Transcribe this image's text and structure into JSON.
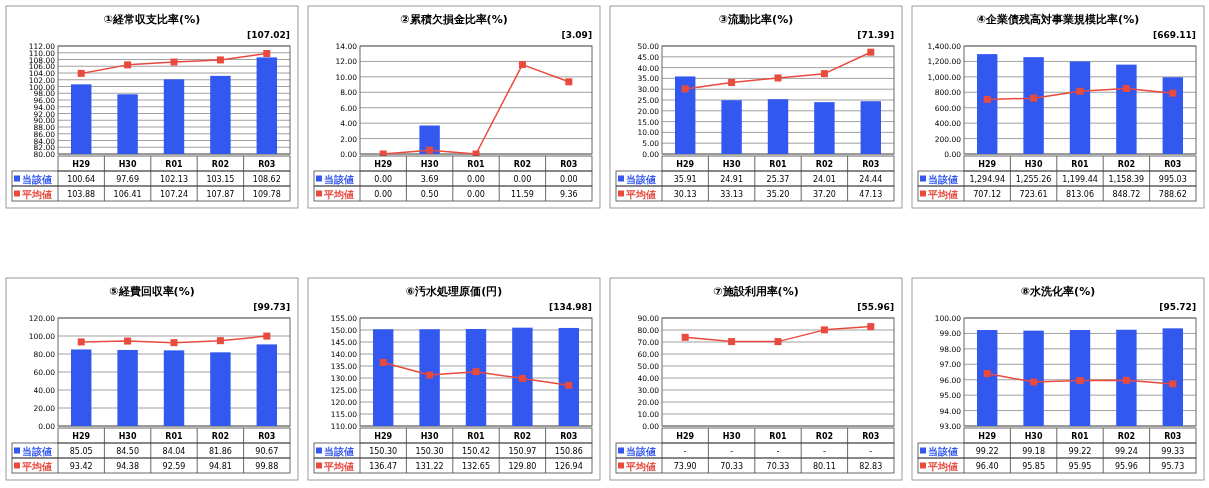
{
  "chart_data": [
    {
      "type": "bar",
      "title": "①経常収支比率(%)",
      "annotations": [
        "[107.02]"
      ],
      "legend": "bottom left",
      "categories": [
        "H29",
        "H30",
        "R01",
        "R02",
        "R03"
      ],
      "grid": "y",
      "marker": "square",
      "series": [
        {
          "name": "当該値",
          "color": "#3358f0",
          "values": [
            100.64,
            97.69,
            102.13,
            103.15,
            108.62
          ],
          "value_labels": [
            "100.64",
            "97.69",
            "102.13",
            "103.15",
            "108.62"
          ]
        },
        {
          "name": "平均値",
          "type": "line",
          "color": "#e84a3e",
          "values": [
            103.88,
            106.41,
            107.24,
            107.87,
            109.78
          ],
          "value_labels": [
            "103.88",
            "106.41",
            "107.24",
            "107.87",
            "109.78"
          ]
        }
      ],
      "ylim": [
        80,
        112
      ],
      "yticks": [
        {
          "value": 80,
          "label": "80.00"
        },
        {
          "value": 82,
          "label": "82.00"
        },
        {
          "value": 84,
          "label": "84.00"
        },
        {
          "value": 86,
          "label": "86.00"
        },
        {
          "value": 88,
          "label": "88.00"
        },
        {
          "value": 90,
          "label": "90.00"
        },
        {
          "value": 92,
          "label": "92.00"
        },
        {
          "value": 94,
          "label": "94.00"
        },
        {
          "value": 96,
          "label": "96.00"
        },
        {
          "value": 98,
          "label": "98.00"
        },
        {
          "value": 100,
          "label": "100.00"
        },
        {
          "value": 102,
          "label": "102.00"
        },
        {
          "value": 104,
          "label": "104.00"
        },
        {
          "value": 106,
          "label": "106.00"
        },
        {
          "value": 108,
          "label": "108.00"
        },
        {
          "value": 110,
          "label": "110.00"
        },
        {
          "value": 112,
          "label": "112.00"
        }
      ]
    },
    {
      "type": "bar",
      "title": "②累積欠損金比率(%)",
      "annotations": [
        "[3.09]"
      ],
      "legend": "bottom left",
      "categories": [
        "H29",
        "H30",
        "R01",
        "R02",
        "R03"
      ],
      "grid": "y",
      "marker": "square",
      "series": [
        {
          "name": "当該値",
          "color": "#3358f0",
          "values": [
            0,
            3.69,
            0,
            0,
            0
          ],
          "value_labels": [
            "0.00",
            "3.69",
            "0.00",
            "0.00",
            "0.00"
          ]
        },
        {
          "name": "平均値",
          "type": "line",
          "color": "#e84a3e",
          "values": [
            0,
            0.5,
            0,
            11.59,
            9.36
          ],
          "value_labels": [
            "0.00",
            "0.50",
            "0.00",
            "11.59",
            "9.36"
          ]
        }
      ],
      "ylim": [
        0,
        14
      ],
      "yticks": [
        {
          "value": 0,
          "label": "0.00"
        },
        {
          "value": 2,
          "label": "2.00"
        },
        {
          "value": 4,
          "label": "4.00"
        },
        {
          "value": 6,
          "label": "6.00"
        },
        {
          "value": 8,
          "label": "8.00"
        },
        {
          "value": 10,
          "label": "10.00"
        },
        {
          "value": 12,
          "label": "12.00"
        },
        {
          "value": 14,
          "label": "14.00"
        }
      ]
    },
    {
      "type": "bar",
      "title": "③流動比率(%)",
      "annotations": [
        "[71.39]"
      ],
      "legend": "bottom left",
      "categories": [
        "H29",
        "H30",
        "R01",
        "R02",
        "R03"
      ],
      "grid": "y",
      "marker": "square",
      "series": [
        {
          "name": "当該値",
          "color": "#3358f0",
          "values": [
            35.91,
            24.91,
            25.37,
            24.01,
            24.44
          ],
          "value_labels": [
            "35.91",
            "24.91",
            "25.37",
            "24.01",
            "24.44"
          ]
        },
        {
          "name": "平均値",
          "type": "line",
          "color": "#e84a3e",
          "values": [
            30.13,
            33.13,
            35.2,
            37.2,
            47.13
          ],
          "value_labels": [
            "30.13",
            "33.13",
            "35.20",
            "37.20",
            "47.13"
          ]
        }
      ],
      "ylim": [
        0,
        50
      ],
      "yticks": [
        {
          "value": 0,
          "label": "0.00"
        },
        {
          "value": 5,
          "label": "5.00"
        },
        {
          "value": 10,
          "label": "10.00"
        },
        {
          "value": 15,
          "label": "15.00"
        },
        {
          "value": 20,
          "label": "20.00"
        },
        {
          "value": 25,
          "label": "25.00"
        },
        {
          "value": 30,
          "label": "30.00"
        },
        {
          "value": 35,
          "label": "35.00"
        },
        {
          "value": 40,
          "label": "40.00"
        },
        {
          "value": 45,
          "label": "45.00"
        },
        {
          "value": 50,
          "label": "50.00"
        }
      ]
    },
    {
      "type": "bar",
      "title": "④企業債残高対事業規模比率(%)",
      "annotations": [
        "[669.11]"
      ],
      "legend": "bottom left",
      "categories": [
        "H29",
        "H30",
        "R01",
        "R02",
        "R03"
      ],
      "grid": "y",
      "marker": "square",
      "series": [
        {
          "name": "当該値",
          "color": "#3358f0",
          "values": [
            1294.94,
            1255.26,
            1199.44,
            1158.39,
            995.03
          ],
          "value_labels": [
            "1,294.94",
            "1,255.26",
            "1,199.44",
            "1,158.39",
            "995.03"
          ]
        },
        {
          "name": "平均値",
          "type": "line",
          "color": "#e84a3e",
          "values": [
            707.12,
            723.61,
            813.06,
            848.72,
            788.62
          ],
          "value_labels": [
            "707.12",
            "723.61",
            "813.06",
            "848.72",
            "788.62"
          ]
        }
      ],
      "ylim": [
        0,
        1400
      ],
      "yticks": [
        {
          "value": 0,
          "label": "0.00"
        },
        {
          "value": 200,
          "label": "200.00"
        },
        {
          "value": 400,
          "label": "400.00"
        },
        {
          "value": 600,
          "label": "600.00"
        },
        {
          "value": 800,
          "label": "800.00"
        },
        {
          "value": 1000,
          "label": "1,000.00"
        },
        {
          "value": 1200,
          "label": "1,200.00"
        },
        {
          "value": 1400,
          "label": "1,400.00"
        }
      ]
    },
    {
      "type": "bar",
      "title": "⑤経費回収率(%)",
      "annotations": [
        "[99.73]"
      ],
      "legend": "bottom left",
      "categories": [
        "H29",
        "H30",
        "R01",
        "R02",
        "R03"
      ],
      "grid": "y",
      "marker": "square",
      "series": [
        {
          "name": "当該値",
          "color": "#3358f0",
          "values": [
            85.05,
            84.5,
            84.04,
            81.86,
            90.67
          ],
          "value_labels": [
            "85.05",
            "84.50",
            "84.04",
            "81.86",
            "90.67"
          ]
        },
        {
          "name": "平均値",
          "type": "line",
          "color": "#e84a3e",
          "values": [
            93.42,
            94.38,
            92.59,
            94.81,
            99.88
          ],
          "value_labels": [
            "93.42",
            "94.38",
            "92.59",
            "94.81",
            "99.88"
          ]
        }
      ],
      "ylim": [
        0,
        120
      ],
      "yticks": [
        {
          "value": 0,
          "label": "0.00"
        },
        {
          "value": 20,
          "label": "20.00"
        },
        {
          "value": 40,
          "label": "40.00"
        },
        {
          "value": 60,
          "label": "60.00"
        },
        {
          "value": 80,
          "label": "80.00"
        },
        {
          "value": 100,
          "label": "100.00"
        },
        {
          "value": 120,
          "label": "120.00"
        }
      ]
    },
    {
      "type": "bar",
      "title": "⑥汚水処理原価(円)",
      "annotations": [
        "[134.98]"
      ],
      "legend": "bottom left",
      "categories": [
        "H29",
        "H30",
        "R01",
        "R02",
        "R03"
      ],
      "grid": "y",
      "marker": "square",
      "series": [
        {
          "name": "当該値",
          "color": "#3358f0",
          "values": [
            150.3,
            150.3,
            150.42,
            150.97,
            150.86
          ],
          "value_labels": [
            "150.30",
            "150.30",
            "150.42",
            "150.97",
            "150.86"
          ]
        },
        {
          "name": "平均値",
          "type": "line",
          "color": "#e84a3e",
          "values": [
            136.47,
            131.22,
            132.65,
            129.8,
            126.94
          ],
          "value_labels": [
            "136.47",
            "131.22",
            "132.65",
            "129.80",
            "126.94"
          ]
        }
      ],
      "ylim": [
        110,
        155
      ],
      "yticks": [
        {
          "value": 110,
          "label": "110.00"
        },
        {
          "value": 115,
          "label": "115.00"
        },
        {
          "value": 120,
          "label": "120.00"
        },
        {
          "value": 125,
          "label": "125.00"
        },
        {
          "value": 130,
          "label": "130.00"
        },
        {
          "value": 135,
          "label": "135.00"
        },
        {
          "value": 140,
          "label": "140.00"
        },
        {
          "value": 145,
          "label": "145.00"
        },
        {
          "value": 150,
          "label": "150.00"
        },
        {
          "value": 155,
          "label": "155.00"
        }
      ]
    },
    {
      "type": "bar",
      "title": "⑦施設利用率(%)",
      "annotations": [
        "[55.96]"
      ],
      "legend": "bottom left",
      "categories": [
        "H29",
        "H30",
        "R01",
        "R02",
        "R03"
      ],
      "grid": "y",
      "marker": "square",
      "series": [
        {
          "name": "当該値",
          "color": "#3358f0",
          "values": [
            null,
            null,
            null,
            null,
            null
          ],
          "value_labels": [
            "-",
            "-",
            "-",
            "-",
            "-"
          ]
        },
        {
          "name": "平均値",
          "type": "line",
          "color": "#e84a3e",
          "values": [
            73.9,
            70.33,
            70.33,
            80.11,
            82.83
          ],
          "value_labels": [
            "73.90",
            "70.33",
            "70.33",
            "80.11",
            "82.83"
          ]
        }
      ],
      "ylim": [
        0,
        90
      ],
      "yticks": [
        {
          "value": 0,
          "label": "0.00"
        },
        {
          "value": 10,
          "label": "10.00"
        },
        {
          "value": 20,
          "label": "20.00"
        },
        {
          "value": 30,
          "label": "30.00"
        },
        {
          "value": 40,
          "label": "40.00"
        },
        {
          "value": 50,
          "label": "50.00"
        },
        {
          "value": 60,
          "label": "60.00"
        },
        {
          "value": 70,
          "label": "70.00"
        },
        {
          "value": 80,
          "label": "80.00"
        },
        {
          "value": 90,
          "label": "90.00"
        }
      ]
    },
    {
      "type": "bar",
      "title": "⑧水洗化率(%)",
      "annotations": [
        "[95.72]"
      ],
      "legend": "bottom left",
      "categories": [
        "H29",
        "H30",
        "R01",
        "R02",
        "R03"
      ],
      "grid": "y",
      "marker": "square",
      "series": [
        {
          "name": "当該値",
          "color": "#3358f0",
          "values": [
            99.22,
            99.18,
            99.22,
            99.24,
            99.33
          ],
          "value_labels": [
            "99.22",
            "99.18",
            "99.22",
            "99.24",
            "99.33"
          ]
        },
        {
          "name": "平均値",
          "type": "line",
          "color": "#e84a3e",
          "values": [
            96.4,
            95.85,
            95.95,
            95.96,
            95.73
          ],
          "value_labels": [
            "96.40",
            "95.85",
            "95.95",
            "95.96",
            "95.73"
          ]
        }
      ],
      "ylim": [
        93,
        100
      ],
      "yticks": [
        {
          "value": 93,
          "label": "93.00"
        },
        {
          "value": 94,
          "label": "94.00"
        },
        {
          "value": 95,
          "label": "95.00"
        },
        {
          "value": 96,
          "label": "96.00"
        },
        {
          "value": 97,
          "label": "97.00"
        },
        {
          "value": 98,
          "label": "98.00"
        },
        {
          "value": 99,
          "label": "99.00"
        },
        {
          "value": 100,
          "label": "100.00"
        }
      ]
    }
  ]
}
